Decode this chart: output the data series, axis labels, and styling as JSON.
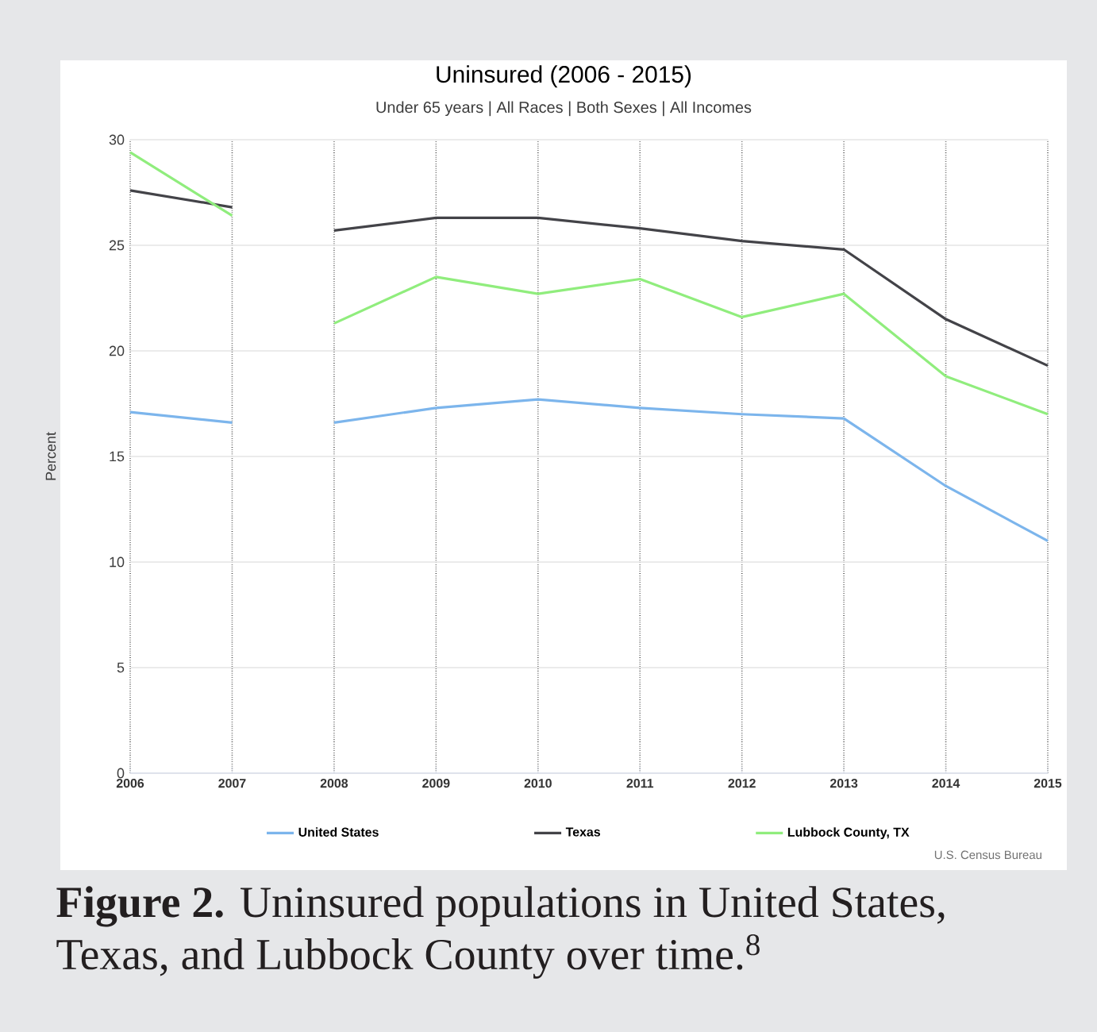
{
  "chart_data": {
    "type": "line",
    "title": "Uninsured (2006 - 2015)",
    "subtitle": "Under 65 years | All Races | Both Sexes | All Incomes",
    "ylabel": "Percent",
    "x": [
      2006,
      2007,
      2007.5,
      2008,
      2009,
      2010,
      2011,
      2012,
      2013,
      2014,
      2015
    ],
    "series": [
      {
        "name": "United States",
        "color": "#7cb5ec",
        "values": [
          17.1,
          16.6,
          null,
          16.6,
          17.3,
          17.7,
          17.3,
          17.0,
          16.8,
          13.6,
          11.0
        ]
      },
      {
        "name": "Texas",
        "color": "#434348",
        "values": [
          27.6,
          26.8,
          null,
          25.7,
          26.3,
          26.3,
          25.8,
          25.2,
          24.8,
          21.5,
          19.3
        ]
      },
      {
        "name": "Lubbock County, TX",
        "color": "#90ed7d",
        "values": [
          29.4,
          26.4,
          null,
          21.3,
          23.5,
          22.7,
          23.4,
          21.6,
          22.7,
          18.8,
          17.0
        ]
      }
    ],
    "xlim": [
      2006,
      2015
    ],
    "xticks": [
      2006,
      2007,
      2008,
      2009,
      2010,
      2011,
      2012,
      2013,
      2014,
      2015
    ],
    "ylim": [
      0,
      30
    ],
    "yticks": [
      0,
      5,
      10,
      15,
      20,
      25,
      30
    ],
    "grid": true,
    "legend": "bottom",
    "marker": "none",
    "line_style": "solid",
    "annotations": [
      "U.S. Census Bureau",
      "**Figure 2.**  Uninsured populations in United States, Texas, and Lubbock County over time.$^{8}$"
    ]
  }
}
